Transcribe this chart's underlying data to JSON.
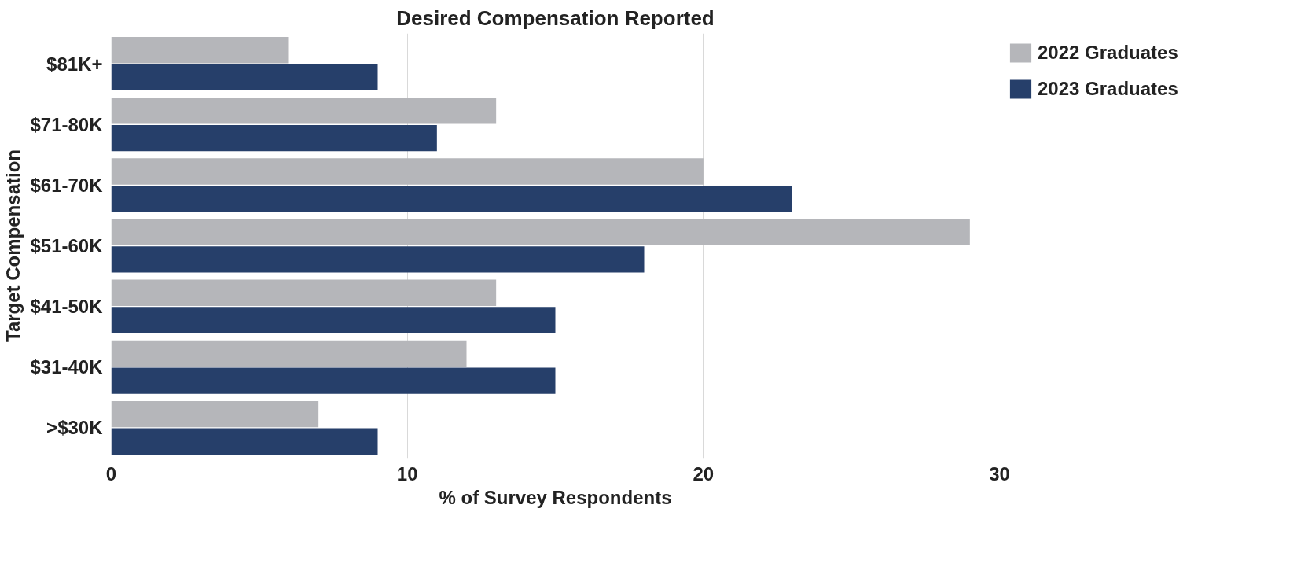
{
  "chart_data": {
    "type": "bar",
    "orientation": "horizontal",
    "title": "Desired Compensation Reported",
    "xlabel": "% of Survey Respondents",
    "ylabel": "Target Compensation",
    "categories": [
      "$81K+",
      "$71-80K",
      "$61-70K",
      "$51-60K",
      "$41-50K",
      "$31-40K",
      ">$30K"
    ],
    "series": [
      {
        "name": "2022 Graduates",
        "color": "#b5b6ba",
        "values": [
          6,
          13,
          20,
          29,
          13,
          12,
          7
        ]
      },
      {
        "name": "2023 Graduates",
        "color": "#263f6a",
        "values": [
          9,
          11,
          23,
          18,
          15,
          15,
          9
        ]
      }
    ],
    "xlim": [
      0,
      30
    ],
    "xticks": [
      0,
      10,
      20,
      30
    ],
    "grid": "x",
    "legend": "top right"
  }
}
